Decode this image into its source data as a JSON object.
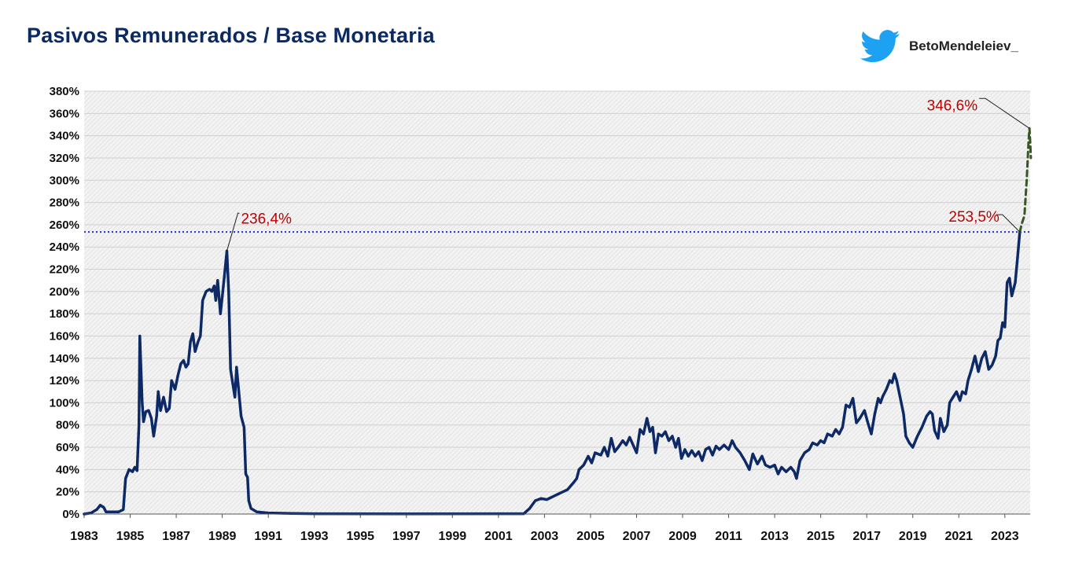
{
  "header": {
    "title": "Pasivos Remunerados  / Base Monetaria",
    "handle": "BetoMendeleiev_"
  },
  "icons": {
    "brand": "twitter-bird-icon"
  },
  "colors": {
    "title": "#0b2a63",
    "line": "#0d2a66",
    "projection": "#375623",
    "reference": "#1f2fe0",
    "annotation": "#c00000"
  },
  "chart_data": {
    "type": "line",
    "title": "Pasivos Remunerados  / Base Monetaria",
    "xlabel": "",
    "ylabel": "",
    "xlim": [
      1983,
      2024.1
    ],
    "ylim": [
      0,
      380
    ],
    "y_tick_step": 20,
    "y_unit": "%",
    "x_ticks": [
      1983,
      1985,
      1987,
      1989,
      1991,
      1993,
      1995,
      1997,
      1999,
      2001,
      2003,
      2005,
      2007,
      2009,
      2011,
      2013,
      2015,
      2017,
      2019,
      2021,
      2023
    ],
    "grid": true,
    "series": [
      {
        "name": "Pasivos Remunerados / Base Monetaria",
        "style": "solid",
        "points": [
          [
            1983.0,
            0
          ],
          [
            1983.3,
            1
          ],
          [
            1983.55,
            4
          ],
          [
            1983.7,
            8
          ],
          [
            1983.85,
            6
          ],
          [
            1983.95,
            2
          ],
          [
            1984.2,
            2
          ],
          [
            1984.5,
            2
          ],
          [
            1984.7,
            4
          ],
          [
            1984.8,
            32
          ],
          [
            1984.95,
            40
          ],
          [
            1985.1,
            38
          ],
          [
            1985.2,
            42
          ],
          [
            1985.3,
            39
          ],
          [
            1985.38,
            80
          ],
          [
            1985.42,
            160
          ],
          [
            1985.52,
            100
          ],
          [
            1985.58,
            83
          ],
          [
            1985.68,
            92
          ],
          [
            1985.8,
            93
          ],
          [
            1985.92,
            86
          ],
          [
            1986.02,
            70
          ],
          [
            1986.15,
            88
          ],
          [
            1986.22,
            110
          ],
          [
            1986.32,
            93
          ],
          [
            1986.45,
            105
          ],
          [
            1986.58,
            92
          ],
          [
            1986.7,
            95
          ],
          [
            1986.8,
            120
          ],
          [
            1986.95,
            112
          ],
          [
            1987.08,
            125
          ],
          [
            1987.2,
            135
          ],
          [
            1987.32,
            138
          ],
          [
            1987.42,
            132
          ],
          [
            1987.52,
            135
          ],
          [
            1987.62,
            155
          ],
          [
            1987.72,
            162
          ],
          [
            1987.82,
            146
          ],
          [
            1987.95,
            155
          ],
          [
            1988.05,
            160
          ],
          [
            1988.15,
            192
          ],
          [
            1988.3,
            200
          ],
          [
            1988.45,
            202
          ],
          [
            1988.55,
            200
          ],
          [
            1988.65,
            205
          ],
          [
            1988.72,
            192
          ],
          [
            1988.8,
            210
          ],
          [
            1988.92,
            180
          ],
          [
            1989.0,
            195
          ],
          [
            1989.1,
            215
          ],
          [
            1989.2,
            236.4
          ],
          [
            1989.28,
            200
          ],
          [
            1989.36,
            130
          ],
          [
            1989.45,
            118
          ],
          [
            1989.55,
            105
          ],
          [
            1989.62,
            132
          ],
          [
            1989.72,
            110
          ],
          [
            1989.82,
            88
          ],
          [
            1989.95,
            78
          ],
          [
            1990.02,
            36
          ],
          [
            1990.1,
            33
          ],
          [
            1990.15,
            12
          ],
          [
            1990.25,
            5
          ],
          [
            1990.5,
            2
          ],
          [
            1991.0,
            1
          ],
          [
            1992.0,
            0.5
          ],
          [
            1993.0,
            0.3
          ],
          [
            1997.0,
            0.2
          ],
          [
            2002.1,
            0.3
          ],
          [
            2002.35,
            5
          ],
          [
            2002.6,
            12
          ],
          [
            2002.85,
            14
          ],
          [
            2003.1,
            13
          ],
          [
            2003.4,
            16
          ],
          [
            2003.7,
            19
          ],
          [
            2004.0,
            22
          ],
          [
            2004.25,
            28
          ],
          [
            2004.4,
            32
          ],
          [
            2004.5,
            40
          ],
          [
            2004.7,
            44
          ],
          [
            2004.9,
            52
          ],
          [
            2005.05,
            46
          ],
          [
            2005.2,
            55
          ],
          [
            2005.45,
            53
          ],
          [
            2005.6,
            60
          ],
          [
            2005.75,
            52
          ],
          [
            2005.9,
            68
          ],
          [
            2006.05,
            56
          ],
          [
            2006.2,
            60
          ],
          [
            2006.4,
            66
          ],
          [
            2006.55,
            62
          ],
          [
            2006.7,
            69
          ],
          [
            2006.85,
            62
          ],
          [
            2007.0,
            55
          ],
          [
            2007.15,
            76
          ],
          [
            2007.3,
            72
          ],
          [
            2007.45,
            86
          ],
          [
            2007.58,
            74
          ],
          [
            2007.7,
            78
          ],
          [
            2007.82,
            55
          ],
          [
            2007.95,
            72
          ],
          [
            2008.1,
            70
          ],
          [
            2008.25,
            74
          ],
          [
            2008.4,
            66
          ],
          [
            2008.55,
            70
          ],
          [
            2008.7,
            60
          ],
          [
            2008.82,
            68
          ],
          [
            2008.95,
            50
          ],
          [
            2009.1,
            58
          ],
          [
            2009.25,
            52
          ],
          [
            2009.4,
            57
          ],
          [
            2009.55,
            52
          ],
          [
            2009.7,
            56
          ],
          [
            2009.85,
            48
          ],
          [
            2010.0,
            58
          ],
          [
            2010.15,
            60
          ],
          [
            2010.3,
            53
          ],
          [
            2010.45,
            61
          ],
          [
            2010.6,
            58
          ],
          [
            2010.8,
            62
          ],
          [
            2011.0,
            58
          ],
          [
            2011.15,
            66
          ],
          [
            2011.3,
            60
          ],
          [
            2011.5,
            55
          ],
          [
            2011.7,
            48
          ],
          [
            2011.9,
            40
          ],
          [
            2012.05,
            54
          ],
          [
            2012.25,
            45
          ],
          [
            2012.45,
            52
          ],
          [
            2012.6,
            44
          ],
          [
            2012.8,
            42
          ],
          [
            2013.0,
            44
          ],
          [
            2013.15,
            36
          ],
          [
            2013.3,
            42
          ],
          [
            2013.5,
            38
          ],
          [
            2013.7,
            42
          ],
          [
            2013.85,
            38
          ],
          [
            2013.95,
            32
          ],
          [
            2014.1,
            48
          ],
          [
            2014.3,
            55
          ],
          [
            2014.5,
            58
          ],
          [
            2014.65,
            64
          ],
          [
            2014.85,
            62
          ],
          [
            2015.0,
            66
          ],
          [
            2015.15,
            64
          ],
          [
            2015.3,
            72
          ],
          [
            2015.5,
            70
          ],
          [
            2015.65,
            76
          ],
          [
            2015.8,
            72
          ],
          [
            2015.95,
            78
          ],
          [
            2016.1,
            98
          ],
          [
            2016.25,
            96
          ],
          [
            2016.4,
            104
          ],
          [
            2016.55,
            82
          ],
          [
            2016.7,
            86
          ],
          [
            2016.9,
            93
          ],
          [
            2017.05,
            82
          ],
          [
            2017.2,
            72
          ],
          [
            2017.35,
            90
          ],
          [
            2017.5,
            104
          ],
          [
            2017.6,
            100
          ],
          [
            2017.7,
            106
          ],
          [
            2017.85,
            112
          ],
          [
            2018.0,
            120
          ],
          [
            2018.1,
            118
          ],
          [
            2018.2,
            126
          ],
          [
            2018.3,
            120
          ],
          [
            2018.45,
            105
          ],
          [
            2018.6,
            90
          ],
          [
            2018.7,
            70
          ],
          [
            2018.85,
            64
          ],
          [
            2019.0,
            60
          ],
          [
            2019.2,
            70
          ],
          [
            2019.4,
            78
          ],
          [
            2019.6,
            88
          ],
          [
            2019.75,
            92
          ],
          [
            2019.85,
            90
          ],
          [
            2019.95,
            75
          ],
          [
            2020.1,
            68
          ],
          [
            2020.2,
            86
          ],
          [
            2020.35,
            74
          ],
          [
            2020.5,
            80
          ],
          [
            2020.6,
            100
          ],
          [
            2020.75,
            105
          ],
          [
            2020.9,
            110
          ],
          [
            2021.05,
            102
          ],
          [
            2021.15,
            110
          ],
          [
            2021.3,
            108
          ],
          [
            2021.4,
            120
          ],
          [
            2021.55,
            130
          ],
          [
            2021.7,
            142
          ],
          [
            2021.85,
            128
          ],
          [
            2022.0,
            140
          ],
          [
            2022.15,
            146
          ],
          [
            2022.3,
            130
          ],
          [
            2022.45,
            134
          ],
          [
            2022.6,
            142
          ],
          [
            2022.7,
            156
          ],
          [
            2022.8,
            158
          ],
          [
            2022.9,
            172
          ],
          [
            2023.0,
            168
          ],
          [
            2023.1,
            208
          ],
          [
            2023.2,
            212
          ],
          [
            2023.3,
            196
          ],
          [
            2023.45,
            208
          ],
          [
            2023.55,
            230
          ],
          [
            2023.65,
            253.5
          ]
        ]
      },
      {
        "name": "Proyección",
        "style": "dashed",
        "points": [
          [
            2023.65,
            253.5
          ],
          [
            2023.75,
            262
          ],
          [
            2023.85,
            268
          ],
          [
            2023.95,
            300
          ],
          [
            2024.03,
            335
          ],
          [
            2024.07,
            346.6
          ],
          [
            2024.1,
            335
          ],
          [
            2024.13,
            320
          ]
        ]
      }
    ],
    "reference_line": {
      "y": 253.5,
      "style": "dotted"
    },
    "annotations": [
      {
        "label": "236,4%",
        "x": 1989.2,
        "y": 236.4
      },
      {
        "label": "253,5%",
        "x": 2023.65,
        "y": 253.5
      },
      {
        "label": "346,6%",
        "x": 2024.07,
        "y": 346.6
      }
    ]
  }
}
